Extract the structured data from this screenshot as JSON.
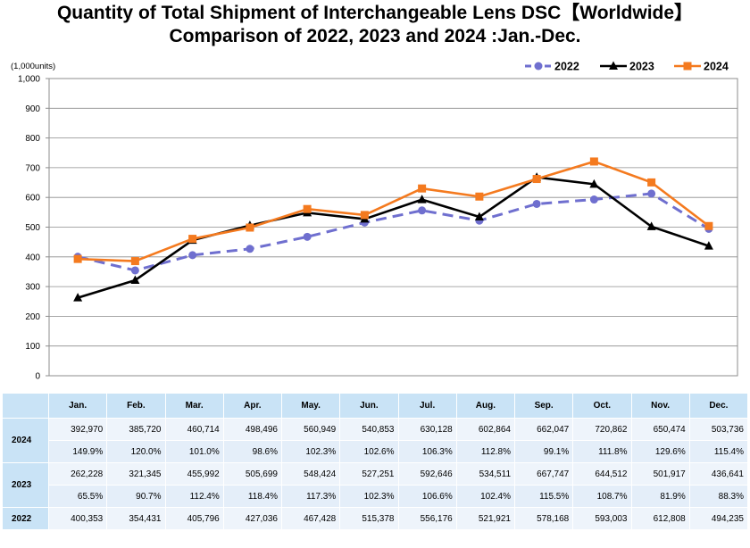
{
  "title_line1": "Quantity of Total Shipment of Interchangeable Lens DSC【Worldwide】",
  "title_line2": "Comparison of 2022, 2023 and 2024 :Jan.-Dec.",
  "chart_data": {
    "type": "line",
    "categories": [
      "Jan.",
      "Feb.",
      "Mar.",
      "Apr.",
      "May.",
      "Jun.",
      "Jul.",
      "Aug.",
      "Sep.",
      "Oct.",
      "Nov.",
      "Dec."
    ],
    "unit_label": "(1,000units)",
    "ylim": [
      0,
      1000
    ],
    "yticks": [
      "0",
      "100",
      "200",
      "300",
      "400",
      "500",
      "600",
      "700",
      "800",
      "900",
      "1,000"
    ],
    "grid": true,
    "legend_position": "top-right",
    "series": [
      {
        "name": "2022",
        "color": "#6f6fcf",
        "style": "dashed",
        "marker": "circle",
        "values": [
          400.353,
          354.431,
          405.796,
          427.036,
          467.428,
          515.378,
          556.176,
          521.921,
          578.168,
          593.003,
          612.808,
          494.235
        ]
      },
      {
        "name": "2023",
        "color": "#000000",
        "style": "solid",
        "marker": "triangle",
        "values": [
          262.228,
          321.345,
          455.992,
          505.699,
          548.424,
          527.251,
          592.646,
          534.511,
          667.747,
          644.512,
          501.917,
          436.641
        ]
      },
      {
        "name": "2024",
        "color": "#f47a1f",
        "style": "solid",
        "marker": "square",
        "values": [
          392.97,
          385.72,
          460.714,
          498.496,
          560.949,
          540.853,
          630.128,
          602.864,
          662.047,
          720.862,
          650.474,
          503.736
        ]
      }
    ]
  },
  "table": {
    "months": [
      "Jan.",
      "Feb.",
      "Mar.",
      "Apr.",
      "May.",
      "Jun.",
      "Jul.",
      "Aug.",
      "Sep.",
      "Oct.",
      "Nov.",
      "Dec."
    ],
    "rows": [
      {
        "year": "2024",
        "units": [
          "392,970",
          "385,720",
          "460,714",
          "498,496",
          "560,949",
          "540,853",
          "630,128",
          "602,864",
          "662,047",
          "720,862",
          "650,474",
          "503,736"
        ],
        "pct": [
          "149.9%",
          "120.0%",
          "101.0%",
          "98.6%",
          "102.3%",
          "102.6%",
          "106.3%",
          "112.8%",
          "99.1%",
          "111.8%",
          "129.6%",
          "115.4%"
        ]
      },
      {
        "year": "2023",
        "units": [
          "262,228",
          "321,345",
          "455,992",
          "505,699",
          "548,424",
          "527,251",
          "592,646",
          "534,511",
          "667,747",
          "644,512",
          "501,917",
          "436,641"
        ],
        "pct": [
          "65.5%",
          "90.7%",
          "112.4%",
          "118.4%",
          "117.3%",
          "102.3%",
          "106.6%",
          "102.4%",
          "115.5%",
          "108.7%",
          "81.9%",
          "88.3%"
        ]
      },
      {
        "year": "2022",
        "units": [
          "400,353",
          "354,431",
          "405,796",
          "427,036",
          "467,428",
          "515,378",
          "556,176",
          "521,921",
          "578,168",
          "593,003",
          "612,808",
          "494,235"
        ]
      }
    ]
  }
}
